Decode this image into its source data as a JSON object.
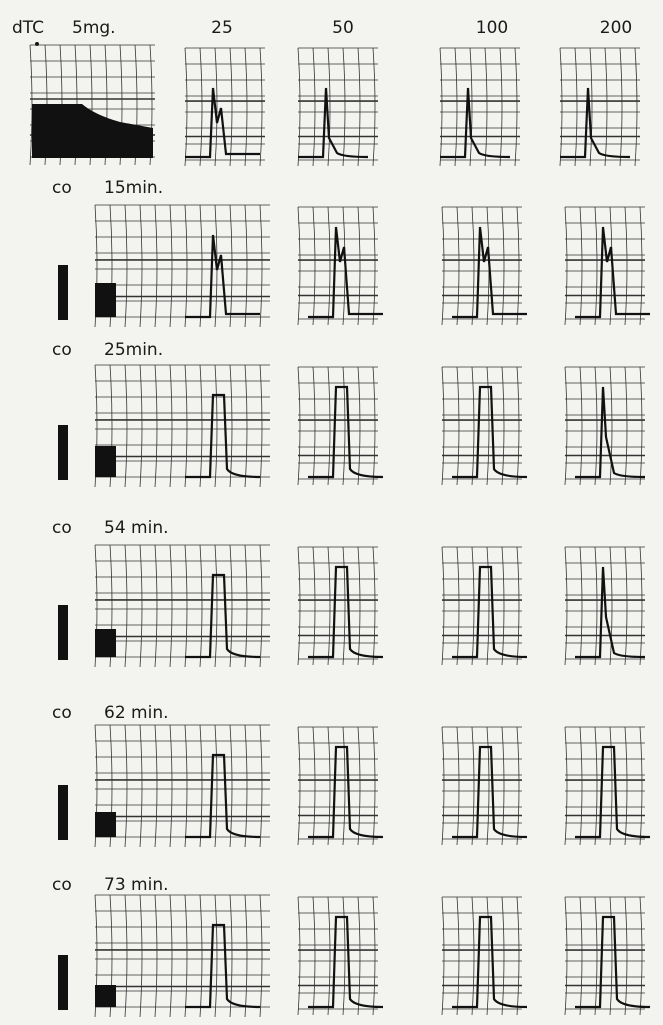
{
  "header": {
    "drug": "dTC",
    "dose": "5mg.",
    "columns": [
      "25",
      "50",
      "100",
      "200"
    ]
  },
  "rows": [
    {
      "label": "co",
      "time": "15min."
    },
    {
      "label": "co",
      "time": "25min."
    },
    {
      "label": "co",
      "time": "54 min."
    },
    {
      "label": "co",
      "time": "62 min."
    },
    {
      "label": "co",
      "time": "73 min."
    }
  ]
}
